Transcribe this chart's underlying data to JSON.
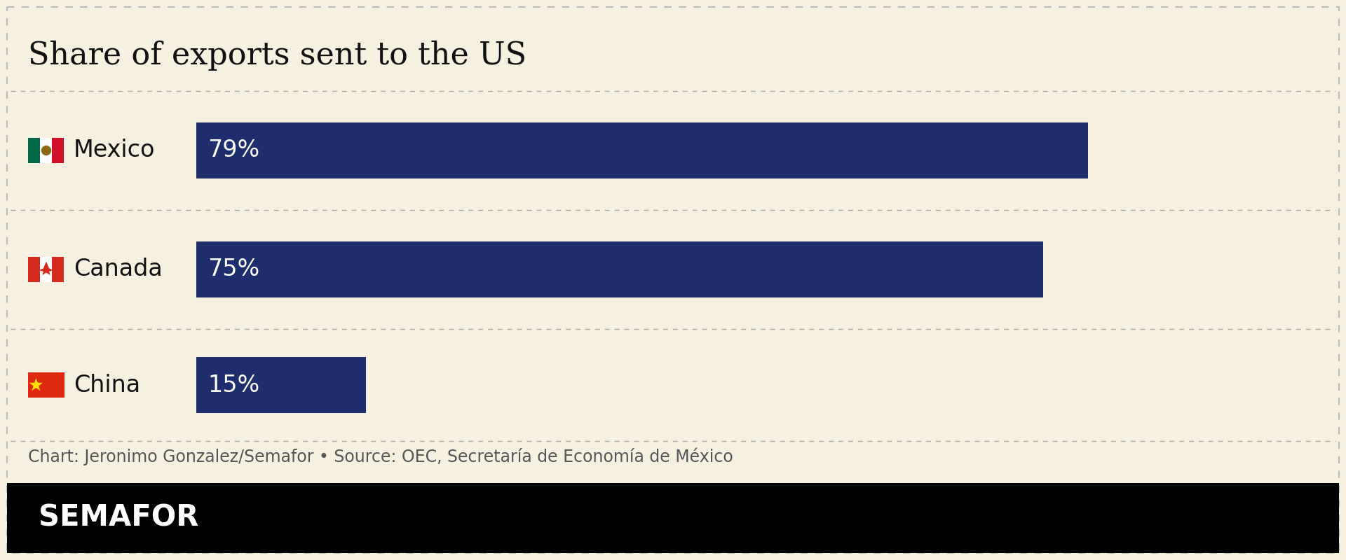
{
  "title": "Share of exports sent to the US",
  "countries": [
    "Mexico",
    "Canada",
    "China"
  ],
  "values": [
    79,
    75,
    15
  ],
  "labels": [
    "79%",
    "75%",
    "15%"
  ],
  "bar_color": "#1e2d6b",
  "bar_text_color": "#ffffff",
  "background_color": "#f5f0df",
  "title_color": "#111111",
  "title_fontsize": 32,
  "bar_label_fontsize": 24,
  "country_fontsize": 24,
  "source_text": "Chart: Jeronimo Gonzalez/Semafor • Source: OEC, Secretaría de Economía de México",
  "source_fontsize": 17,
  "source_color": "#555555",
  "semafor_bg": "#000000",
  "semafor_text": "SEMAFOR",
  "semafor_color": "#ffffff",
  "semafor_fontsize": 30,
  "max_value": 100,
  "divider_color": "#aaaaaa",
  "outer_border_color": "#bbbbbb"
}
